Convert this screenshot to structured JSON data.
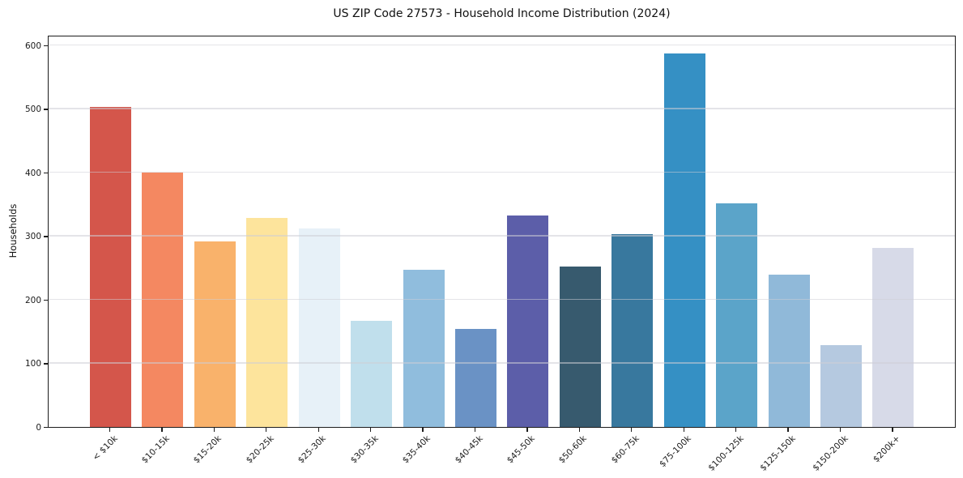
{
  "chart_data": {
    "type": "bar",
    "title": "US ZIP Code 27573 - Household Income Distribution (2024)",
    "xlabel": "",
    "ylabel": "Households",
    "categories": [
      "< $10k",
      "$10-15k",
      "$15-20k",
      "$20-25k",
      "$25-30k",
      "$30-35k",
      "$35-40k",
      "$40-45k",
      "$45-50k",
      "$50-60k",
      "$60-75k",
      "$75-100k",
      "$100-125k",
      "$125-150k",
      "$150-200k",
      "$200k+"
    ],
    "values": [
      502,
      400,
      291,
      328,
      312,
      166,
      247,
      154,
      332,
      252,
      302,
      587,
      351,
      239,
      128,
      281
    ],
    "bar_colors": [
      "#d4564b",
      "#f48861",
      "#f9b26b",
      "#fde49c",
      "#e7f1f8",
      "#c0dfec",
      "#90bddd",
      "#6a92c5",
      "#5c5ea9",
      "#375a6e",
      "#38789e",
      "#3590c4",
      "#5ba4c9",
      "#90b9d9",
      "#b5c9e0",
      "#d7dae8"
    ],
    "ylim": [
      0,
      616
    ],
    "yticks": [
      0,
      100,
      200,
      300,
      400,
      500,
      600
    ],
    "grid": "horizontal-only, light gray, drawn over bars",
    "legend": "none",
    "x_tick_rotation": 45,
    "axis_color": "#1c1c1c",
    "background_color": "#ffffff"
  }
}
